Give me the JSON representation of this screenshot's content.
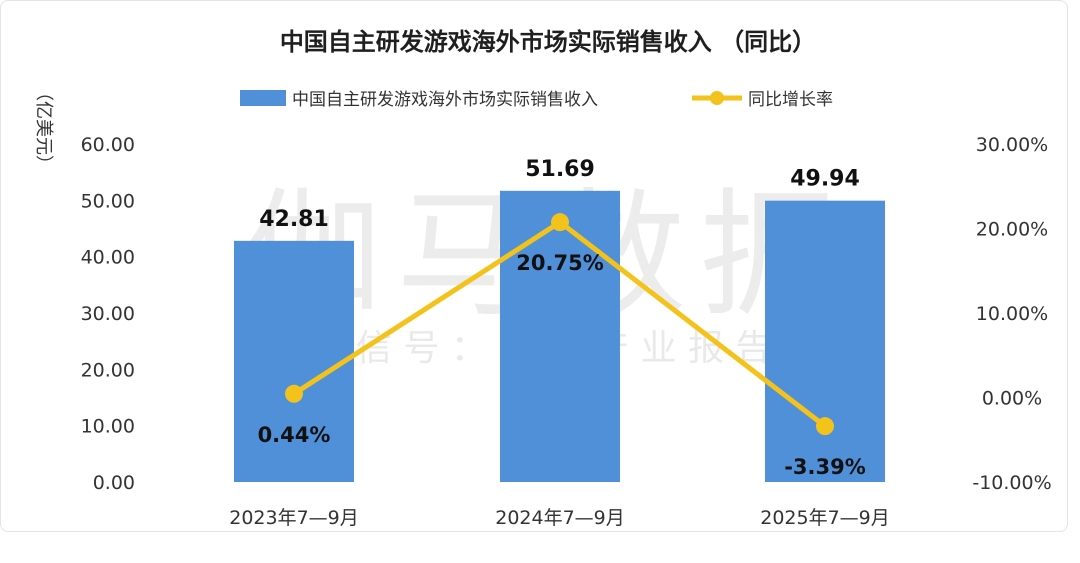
{
  "watermark": {
    "main": "伽马数据",
    "sub": "微 信 号 ： 游 戏 产 业 报 告"
  },
  "chart_data": {
    "type": "bar",
    "title": "中国自主研发游戏海外市场实际销售收入 （同比）",
    "y_unit_label": "（亿美元）",
    "categories": [
      "2023年7—9月",
      "2024年7—9月",
      "2025年7—9月"
    ],
    "series": [
      {
        "name": "中国自主研发游戏海外市场实际销售收入",
        "type": "bar",
        "axis": "left",
        "color": "#4f90d9",
        "values": [
          42.81,
          51.69,
          49.94
        ],
        "labels": [
          "42.81",
          "51.69",
          "49.94"
        ]
      },
      {
        "name": "同比增长率",
        "type": "line",
        "axis": "right",
        "color": "#f3c21b",
        "values": [
          0.44,
          20.75,
          -3.39
        ],
        "labels": [
          "0.44%",
          "20.75%",
          "-3.39%"
        ]
      }
    ],
    "y_left": {
      "min": 0,
      "max": 60,
      "ticks": [
        "60.00",
        "50.00",
        "40.00",
        "30.00",
        "20.00",
        "10.00",
        "0.00"
      ]
    },
    "y_right": {
      "min": -10,
      "max": 30,
      "ticks": [
        "30.00%",
        "20.00%",
        "10.00%",
        "0.00%",
        "-10.00%"
      ]
    },
    "grid": false,
    "legend_position": "top"
  }
}
